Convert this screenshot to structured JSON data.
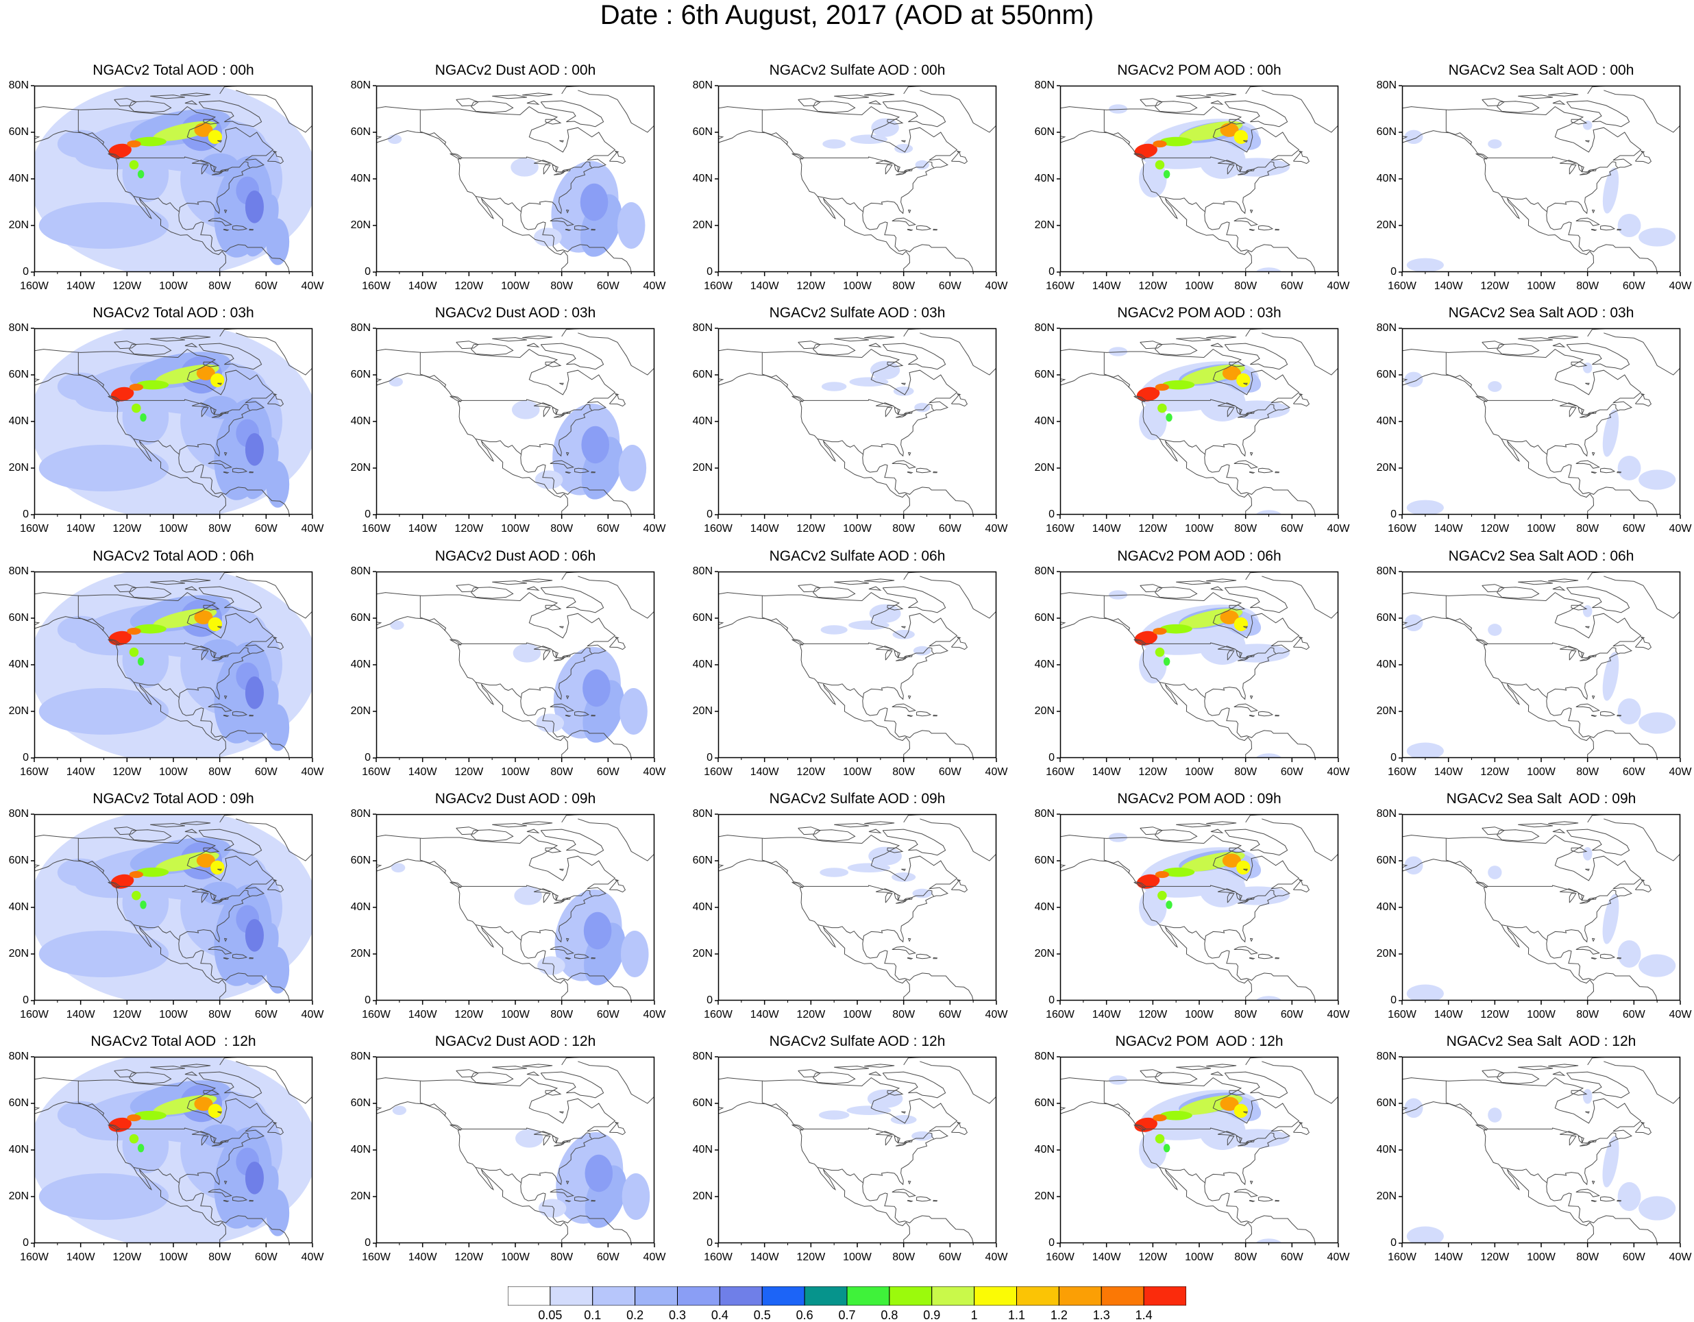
{
  "title": "Date : 6th August, 2017 (AOD at 550nm)",
  "species": [
    "Total",
    "Dust",
    "Sulfate",
    "POM",
    "Sea Salt"
  ],
  "panels": [
    [
      "NGACv2 Total AOD : 00h",
      "NGACv2 Dust AOD : 00h",
      "NGACv2 Sulfate AOD : 00h",
      "NGACv2 POM AOD : 00h",
      "NGACv2 Sea Salt AOD : 00h"
    ],
    [
      "NGACv2 Total AOD : 03h",
      "NGACv2 Dust AOD : 03h",
      "NGACv2 Sulfate AOD : 03h",
      "NGACv2 POM AOD : 03h",
      "NGACv2 Sea Salt AOD : 03h"
    ],
    [
      "NGACv2 Total AOD : 06h",
      "NGACv2 Dust AOD : 06h",
      "NGACv2 Sulfate AOD : 06h",
      "NGACv2 POM AOD : 06h",
      "NGACv2 Sea Salt AOD : 06h"
    ],
    [
      "NGACv2 Total AOD : 09h",
      "NGACv2 Dust AOD : 09h",
      "NGACv2 Sulfate AOD : 09h",
      "NGACv2 POM AOD : 09h",
      "NGACv2 Sea Salt  AOD : 09h"
    ],
    [
      "NGACv2 Total AOD  : 12h",
      "NGACv2 Dust AOD : 12h",
      "NGACv2 Sulfate AOD : 12h",
      "NGACv2 POM  AOD : 12h",
      "NGACv2 Sea Salt  AOD : 12h"
    ]
  ],
  "axes": {
    "lon_ticks": [
      "160W",
      "140W",
      "120W",
      "100W",
      "80W",
      "60W",
      "40W"
    ],
    "lat_ticks": [
      "80N",
      "60N",
      "40N",
      "20N",
      "0"
    ]
  },
  "colorbar": {
    "labels": [
      "0.05",
      "0.1",
      "0.2",
      "0.3",
      "0.4",
      "0.5",
      "0.6",
      "0.7",
      "0.8",
      "0.9",
      "1",
      "1.1",
      "1.2",
      "1.3",
      "1.4"
    ],
    "colors": [
      "#ffffff",
      "#d3dcfc",
      "#b7c6fb",
      "#9eb3f8",
      "#8a9ef5",
      "#6f7fe8",
      "#1c64f7",
      "#06948c",
      "#3ff23a",
      "#9bfa0c",
      "#c9f94a",
      "#fbfb05",
      "#fbc405",
      "#fb9f05",
      "#fb7805",
      "#fb2b0c"
    ]
  }
}
